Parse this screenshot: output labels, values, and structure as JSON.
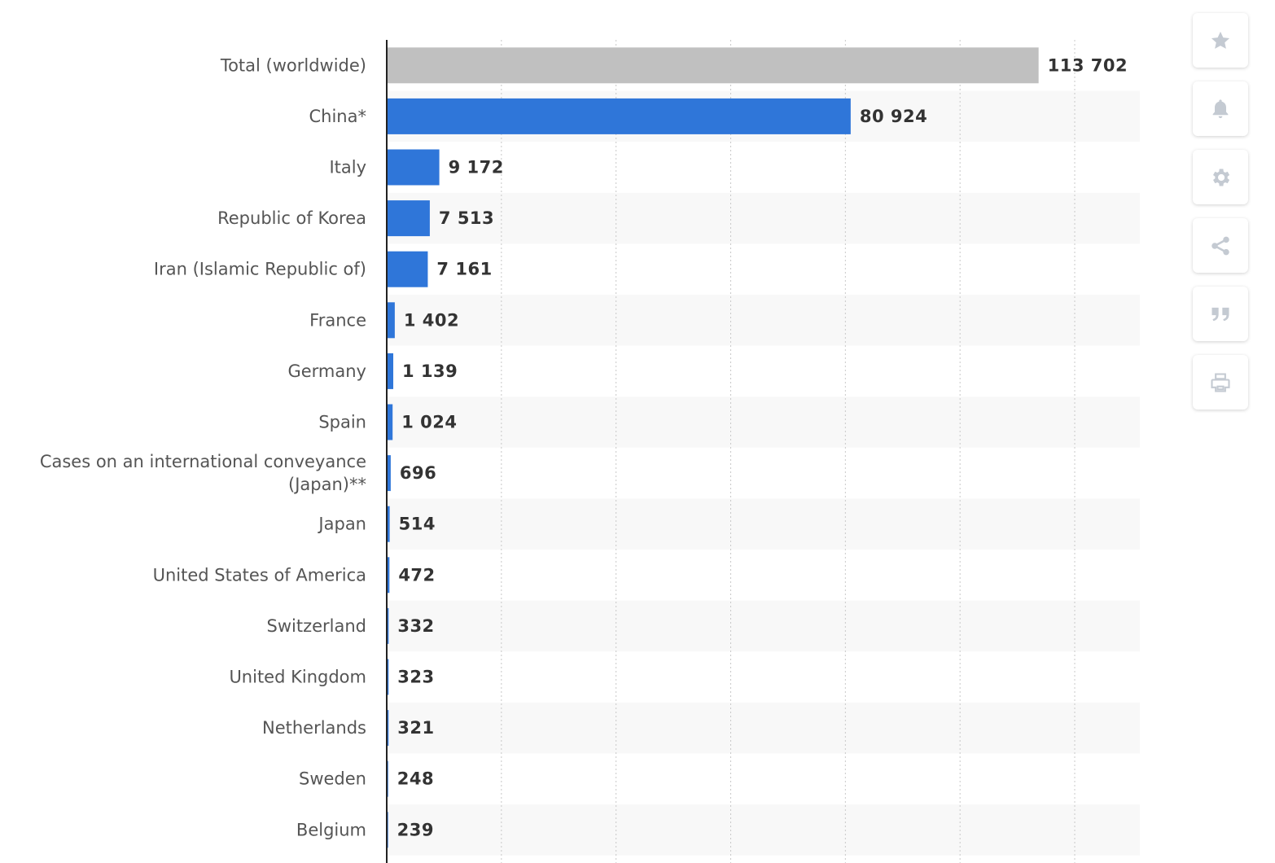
{
  "chart_data": {
    "type": "bar",
    "orientation": "horizontal",
    "title": "",
    "xlabel": "",
    "ylabel": "",
    "xlim": [
      0,
      140000
    ],
    "grid": true,
    "categories": [
      "Total (worldwide)",
      "China*",
      "Italy",
      "Republic of Korea",
      "Iran (Islamic Republic of)",
      "France",
      "Germany",
      "Spain",
      "Cases on an international conveyance (Japan)**",
      "Japan",
      "United States of America",
      "Switzerland",
      "United Kingdom",
      "Netherlands",
      "Sweden",
      "Belgium"
    ],
    "values": [
      113702,
      80924,
      9172,
      7513,
      7161,
      1402,
      1139,
      1024,
      696,
      514,
      472,
      332,
      323,
      321,
      248,
      239
    ],
    "value_labels": [
      "113 702",
      "80 924",
      "9 172",
      "7 513",
      "7 161",
      "1 402",
      "1 139",
      "1 024",
      "696",
      "514",
      "472",
      "332",
      "323",
      "321",
      "248",
      "239"
    ],
    "bar_colors": [
      "#c0c0c0",
      "#2f76d9",
      "#2f76d9",
      "#2f76d9",
      "#2f76d9",
      "#2f76d9",
      "#2f76d9",
      "#2f76d9",
      "#2f76d9",
      "#2f76d9",
      "#2f76d9",
      "#2f76d9",
      "#2f76d9",
      "#2f76d9",
      "#2f76d9",
      "#2f76d9"
    ],
    "band_color": "#f8f8f8",
    "grid_color": "#c8c8c8"
  },
  "toolbar": {
    "buttons": [
      {
        "icon": "star-icon"
      },
      {
        "icon": "bell-icon"
      },
      {
        "icon": "gear-icon"
      },
      {
        "icon": "share-icon"
      },
      {
        "icon": "quote-icon"
      },
      {
        "icon": "print-icon"
      }
    ],
    "icon_color": "#c4cad2"
  }
}
